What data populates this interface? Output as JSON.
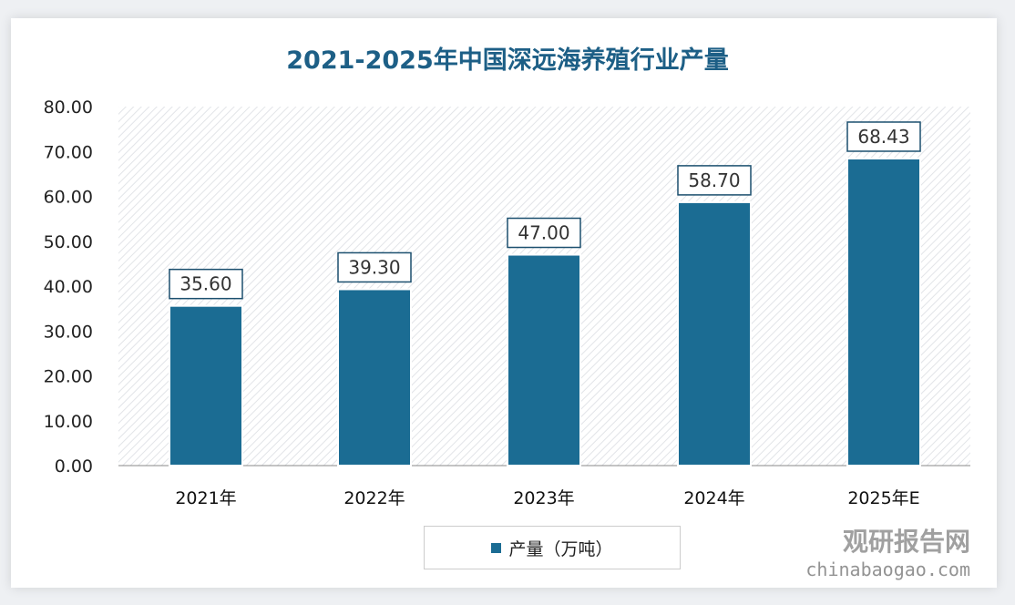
{
  "chart_data": {
    "type": "bar",
    "title": "2021-2025年中国深远海养殖行业产量",
    "categories": [
      "2021年",
      "2022年",
      "2023年",
      "2024年",
      "2025年E"
    ],
    "series": [
      {
        "name": "产量（万吨）",
        "values": [
          35.6,
          39.3,
          47.0,
          58.7,
          68.43
        ]
      }
    ],
    "data_labels": [
      "35.60",
      "39.30",
      "47.00",
      "58.70",
      "68.43"
    ],
    "yticks": [
      "0.00",
      "10.00",
      "20.00",
      "30.00",
      "40.00",
      "50.00",
      "60.00",
      "70.00",
      "80.00"
    ],
    "ylim": [
      0,
      80
    ],
    "xlabel": "",
    "ylabel": "",
    "legend_position": "bottom",
    "bar_color": "#1b6c93"
  },
  "watermark": {
    "name": "观研报告网",
    "url": "chinabaogao.com"
  }
}
